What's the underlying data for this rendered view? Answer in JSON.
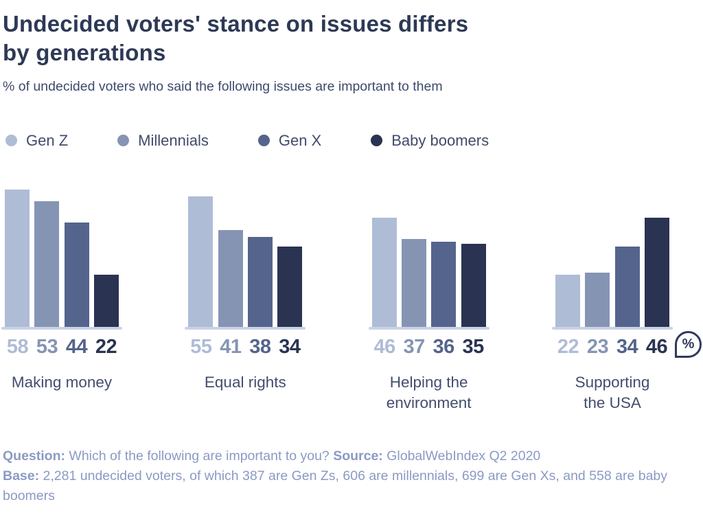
{
  "header": {
    "title_line1": "Undecided voters' stance on issues differs",
    "title_line2": "by generations",
    "subtitle": "% of undecided voters who said the following issues are important to them"
  },
  "legend": {
    "position": "top",
    "items": [
      {
        "label": "Gen Z",
        "color": "#afbcd6"
      },
      {
        "label": "Millennials",
        "color": "#8694b4"
      },
      {
        "label": "Gen X",
        "color": "#55648c"
      },
      {
        "label": "Baby boomers",
        "color": "#2a3351"
      }
    ]
  },
  "chart_data": {
    "type": "bar",
    "title": "Undecided voters' stance on issues differs by generations",
    "subtitle": "% of undecided voters who said the following issues are important to them",
    "categories": [
      "Making money",
      "Equal rights",
      "Helping the environment",
      "Supporting the USA"
    ],
    "category_label_lines": [
      [
        "Making money"
      ],
      [
        "Equal rights"
      ],
      [
        "Helping the",
        "environment"
      ],
      [
        "Supporting",
        "the USA"
      ]
    ],
    "series": [
      {
        "name": "Gen Z",
        "color": "#afbcd6",
        "values": [
          58,
          55,
          46,
          22
        ]
      },
      {
        "name": "Millennials",
        "color": "#8694b4",
        "values": [
          53,
          41,
          37,
          23
        ]
      },
      {
        "name": "Gen X",
        "color": "#55648c",
        "values": [
          44,
          38,
          36,
          34
        ]
      },
      {
        "name": "Baby boomers",
        "color": "#2a3351",
        "values": [
          22,
          34,
          35,
          46
        ]
      }
    ],
    "unit": "%",
    "ylim": [
      0,
      58
    ],
    "grid": false,
    "axes_hidden": true,
    "value_labels_shown": true,
    "value_label_color_matches_series": true,
    "baseline_color": "#c9d2e5"
  },
  "percent_badge": {
    "symbol": "%"
  },
  "footer": {
    "question_label": "Question:",
    "question_text": " Which of the following are important to you? ",
    "source_label": "Source:",
    "source_text": " GlobalWebIndex Q2 2020",
    "base_label": "Base:",
    "base_text": " 2,281 undecided voters, of which 387 are Gen Zs, 606 are millennials, 699 are Gen Xs, and 558 are baby boomers"
  },
  "colors": {
    "background": "#ffffff",
    "title": "#2d3955",
    "body_text": "#3e4a6b",
    "footer_text": "#8b9ac4",
    "badge_outline": "#2e3a5a"
  }
}
